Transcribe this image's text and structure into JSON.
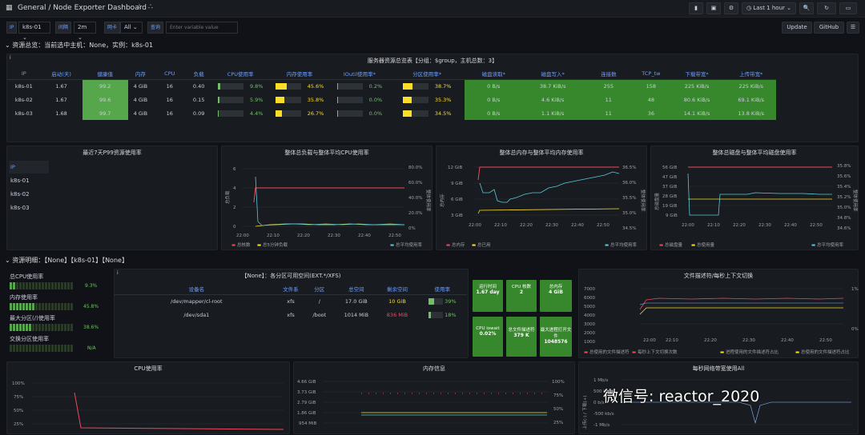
{
  "header": {
    "breadcrumb": "General  / Node Exporter Dashboard",
    "time_range": "Last 1 hour",
    "update": "Update",
    "github": "GitHub"
  },
  "vars": {
    "ip_label": "IP",
    "ip_value": "k8s-01",
    "interval_label": "间隔",
    "interval_value": "2m",
    "nic_label": "网卡",
    "nic_value": "All",
    "query_label": "查询",
    "query_placeholder": "Enter variable value"
  },
  "row1": {
    "title": "资源总览：当前选中主机：None，实例：k8s-01"
  },
  "summary": {
    "title": "服务器资源总览表【分组：$group，主机总数：3】",
    "headers": [
      "IP",
      "启动(天)",
      "健康值",
      "内存",
      "CPU",
      "负载",
      "CPU使用率",
      "内存使用率",
      "IOutil使用率*",
      "分区使用率*",
      "磁盘读取*",
      "磁盘写入*",
      "连接数",
      "TCP_tw",
      "下载带宽*",
      "上传带宽*"
    ],
    "rows": [
      {
        "ip": "k8s-01",
        "uptime": "1.67",
        "health": "99.2",
        "mem": "4 GiB",
        "cpu": "16",
        "load": "0.40",
        "cpu_pct": "9.8%",
        "cpu_frac": 0.098,
        "mem_pct": "45.6%",
        "mem_frac": 0.456,
        "io_pct": "0.2%",
        "io_frac": 0.002,
        "part_pct": "38.7%",
        "part_frac": 0.387,
        "rd": "0 B/s",
        "wr": "38.7 KiB/s",
        "conn": "255",
        "tcptw": "158",
        "down": "225 KiB/s",
        "up": "225 KiB/s"
      },
      {
        "ip": "k8s-02",
        "uptime": "1.67",
        "health": "99.6",
        "mem": "4 GiB",
        "cpu": "16",
        "load": "0.15",
        "cpu_pct": "5.9%",
        "cpu_frac": 0.059,
        "mem_pct": "35.8%",
        "mem_frac": 0.358,
        "io_pct": "0.0%",
        "io_frac": 0.0,
        "part_pct": "35.3%",
        "part_frac": 0.353,
        "rd": "0 B/s",
        "wr": "4.6 KiB/s",
        "conn": "11",
        "tcptw": "48",
        "down": "80.6 KiB/s",
        "up": "69.1 KiB/s"
      },
      {
        "ip": "k8s-03",
        "uptime": "1.68",
        "health": "99.7",
        "mem": "4 GiB",
        "cpu": "16",
        "load": "0.09",
        "cpu_pct": "4.4%",
        "cpu_frac": 0.044,
        "mem_pct": "26.7%",
        "mem_frac": 0.267,
        "io_pct": "0.0%",
        "io_frac": 0.0,
        "part_pct": "34.5%",
        "part_frac": 0.345,
        "rd": "0 B/s",
        "wr": "1.1 KiB/s",
        "conn": "11",
        "tcptw": "36",
        "down": "14.1 KiB/s",
        "up": "13.8 KiB/s"
      }
    ]
  },
  "p99": {
    "title": "最近7天P99资源使用率",
    "header": "IP",
    "items": [
      "k8s-01",
      "k8s-02",
      "k8s-03"
    ]
  },
  "charts": {
    "cpu": {
      "title": "整体总负载与整体平均CPU使用率",
      "yl": [
        "6",
        "4",
        "2",
        "0"
      ],
      "yr": [
        "80.0%",
        "60.0%",
        "40.0%",
        "20.0%",
        "0%"
      ],
      "x": [
        "22:00",
        "22:10",
        "22:20",
        "22:30",
        "22:40",
        "22:50"
      ],
      "ylabel": "总负载",
      "yrlabel": "整体使用率",
      "legend": [
        "总核数",
        "总5分钟负载",
        "总平均使用率"
      ]
    },
    "mem": {
      "title": "整体总内存与整体平均内存使用率",
      "yl": [
        "12 GiB",
        "9 GiB",
        "6 GiB",
        "3 GiB"
      ],
      "yr": [
        "36.5%",
        "36.0%",
        "35.5%",
        "35.0%",
        "34.5%"
      ],
      "x": [
        "22:00",
        "22:10",
        "22:20",
        "22:30",
        "22:40",
        "22:50"
      ],
      "ylabel": "总内存",
      "yrlabel": "整体使用率",
      "legend": [
        "总内存",
        "总已用",
        "总平均使用率"
      ]
    },
    "disk": {
      "title": "整体总磁盘与整体平均磁盘使用率",
      "yl": [
        "56 GiB",
        "47 GiB",
        "37 GiB",
        "28 GiB",
        "19 GiB",
        "9 GiB"
      ],
      "yr": [
        "35.8%",
        "35.6%",
        "35.4%",
        "35.2%",
        "35.0%",
        "34.8%",
        "34.6%"
      ],
      "x": [
        "22:00",
        "22:10",
        "22:20",
        "22:30",
        "22:40",
        "22:50"
      ],
      "ylabel": "总磁盘量",
      "yrlabel": "整体使用率",
      "legend": [
        "总磁盘量",
        "总使用量",
        "总平均使用率"
      ]
    }
  },
  "row2": {
    "title": "资源明细：【None】【k8s-01】【None】"
  },
  "gauges": {
    "items": [
      {
        "label": "总CPU使用率",
        "value": "9.3%",
        "on": 2
      },
      {
        "label": "内存使用率",
        "value": "45.8%",
        "on": 8
      },
      {
        "label": "最大分区(/)使用率",
        "value": "38.6%",
        "on": 7
      },
      {
        "label": "交换分区使用率",
        "value": "N/A",
        "on": 0
      }
    ]
  },
  "fs": {
    "title": "【None】：各分区可用空间(EXT.*/XFS)",
    "headers": [
      "设备名",
      "文件系",
      "分区",
      "总空间",
      "剩余空间",
      "使用率"
    ],
    "rows": [
      {
        "dev": "/dev/mapper/cl-root",
        "fs": "xfs",
        "mnt": "/",
        "total": "17.0 GiB",
        "free": "10 GiB",
        "pct": "39%",
        "frac": 0.39
      },
      {
        "dev": "/dev/sda1",
        "fs": "xfs",
        "mnt": "/boot",
        "total": "1014 MiB",
        "free": "836 MiB",
        "pct": "18%",
        "frac": 0.18
      }
    ]
  },
  "stats": [
    {
      "t": "运行时间",
      "v": "1.67 day"
    },
    {
      "t": "CPU 核数",
      "v": "2"
    },
    {
      "t": "总内存",
      "v": "4 GiB"
    },
    {
      "t": "CPU iowait",
      "v": "0.02%"
    },
    {
      "t": "总文件描述符",
      "v": "379 K"
    },
    {
      "t": "最大进程打开文件",
      "v": "1048576"
    }
  ],
  "fd": {
    "title": "文件描述符/每秒上下文切换",
    "yl": [
      "7000",
      "6000",
      "5000",
      "4000",
      "3000",
      "2000",
      "1000"
    ],
    "yr": [
      "1%",
      "0%"
    ],
    "x": [
      "22:00",
      "22:10",
      "22:20",
      "22:30",
      "22:40",
      "22:50"
    ],
    "legend": [
      "总使用的文件描述符",
      "每秒上下文切换次数",
      "进程使用的文件描述符占比",
      "总使用的文件描述符占比"
    ]
  },
  "cpuuse": {
    "title": "CPU使用率",
    "yl": [
      "100%",
      "75%",
      "50%",
      "25%",
      "0%"
    ]
  },
  "meminfo": {
    "title": "内存信息",
    "yl": [
      "4.66 GiB",
      "3.73 GiB",
      "2.79 GiB",
      "1.86 GiB",
      "954 MiB"
    ],
    "yr": [
      "100%",
      "75%",
      "50%",
      "25%"
    ]
  },
  "net": {
    "title": "每秒网络带宽使用All",
    "yl": [
      "1 Mb/s",
      "500 kb/s",
      "0 b/s",
      "-500 kb/s",
      "-1 Mb/s"
    ],
    "ylabel": "上传(-) / 下载(+)"
  },
  "watermark": "微信号: reactor_2020",
  "colors": {
    "red": "#f2495c",
    "yellow": "#fade2a",
    "cyan": "#5ac8db",
    "green": "#37872d"
  }
}
